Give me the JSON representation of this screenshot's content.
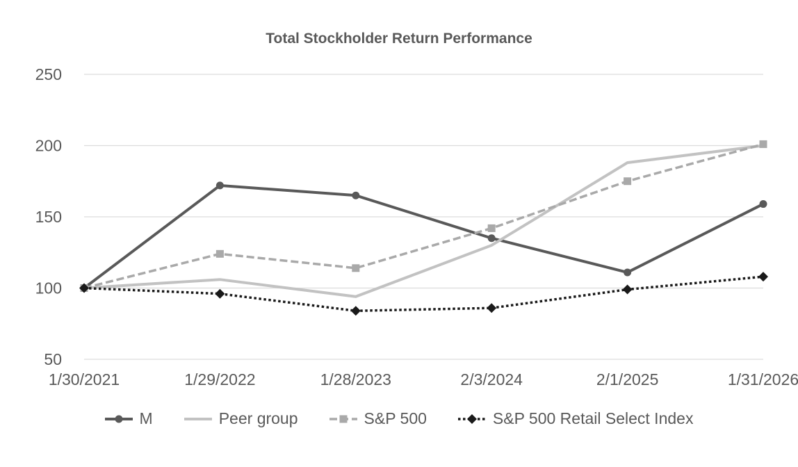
{
  "chart_data": {
    "type": "line",
    "title": "Total Stockholder Return Performance",
    "categories": [
      "1/30/2021",
      "1/29/2022",
      "1/28/2023",
      "2/3/2024",
      "2/1/2025",
      "1/31/2026"
    ],
    "series": [
      {
        "name": "M",
        "values": [
          100,
          172,
          165,
          135,
          111,
          159
        ],
        "color": "#595959",
        "marker": "circle",
        "line_style": "solid"
      },
      {
        "name": "Peer group",
        "values": [
          100,
          106,
          94,
          130,
          188,
          200
        ],
        "color": "#c2c2c2",
        "marker": "none",
        "line_style": "solid"
      },
      {
        "name": "S&P 500",
        "values": [
          100,
          124,
          114,
          142,
          175,
          201
        ],
        "color": "#a9a9a9",
        "marker": "square",
        "line_style": "dashed"
      },
      {
        "name": "S&P 500 Retail Select Index",
        "values": [
          100,
          96,
          84,
          86,
          99,
          108
        ],
        "color": "#1a1a1a",
        "marker": "diamond",
        "line_style": "dotted"
      }
    ],
    "y_ticks": [
      250,
      200,
      150,
      100,
      50
    ],
    "ylim": [
      50,
      250
    ],
    "grid": true,
    "legend_position": "bottom",
    "grid_color": "#dcdcdc",
    "text_color": "#595959"
  }
}
